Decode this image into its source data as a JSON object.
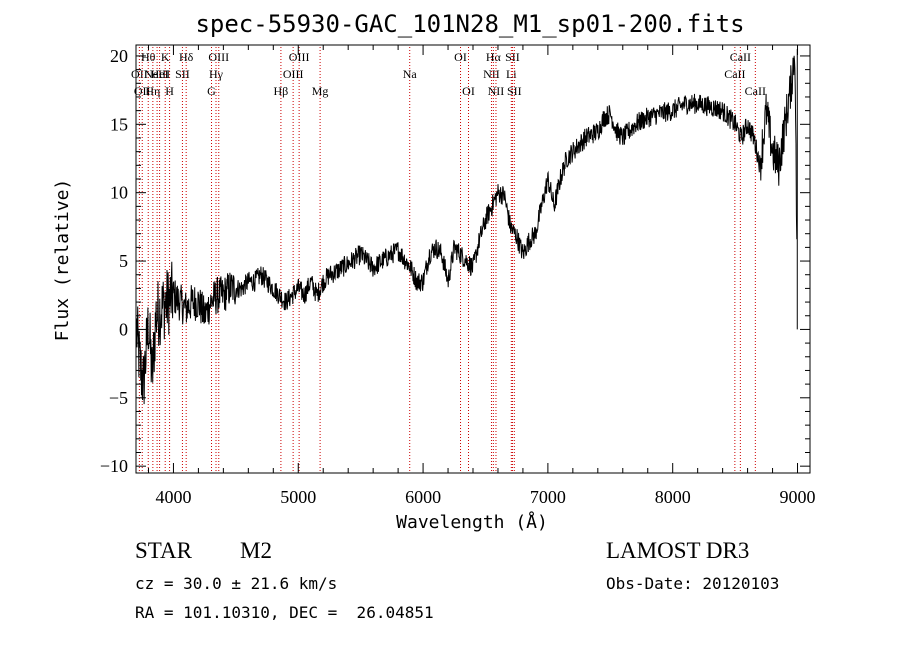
{
  "chart_data": {
    "type": "line",
    "title": "spec-55930-GAC_101N28_M1_sp01-200.fits",
    "xlabel": "Wavelength (Å)",
    "ylabel": "Flux (relative)",
    "xlim": [
      3700,
      9100
    ],
    "ylim": [
      -10.5,
      20.8
    ],
    "xticks": [
      4000,
      5000,
      6000,
      7000,
      8000,
      9000
    ],
    "yticks": [
      -10,
      -5,
      0,
      5,
      10,
      15,
      20
    ],
    "grid": false,
    "series": [
      {
        "name": "flux",
        "color": "#000000",
        "anchors": [
          [
            3700,
            0.5
          ],
          [
            3730,
            -2.5
          ],
          [
            3760,
            -4.0
          ],
          [
            3800,
            0.5
          ],
          [
            3830,
            -3.5
          ],
          [
            3860,
            1.0
          ],
          [
            3900,
            1.5
          ],
          [
            3950,
            2.0
          ],
          [
            4000,
            2.5
          ],
          [
            4050,
            2.0
          ],
          [
            4100,
            1.5
          ],
          [
            4150,
            2.0
          ],
          [
            4200,
            2.0
          ],
          [
            4250,
            1.0
          ],
          [
            4300,
            2.0
          ],
          [
            4350,
            2.5
          ],
          [
            4400,
            2.5
          ],
          [
            4450,
            3.0
          ],
          [
            4500,
            3.0
          ],
          [
            4550,
            3.0
          ],
          [
            4600,
            3.5
          ],
          [
            4650,
            3.5
          ],
          [
            4700,
            4.0
          ],
          [
            4750,
            3.5
          ],
          [
            4800,
            3.0
          ],
          [
            4850,
            2.5
          ],
          [
            4900,
            2.0
          ],
          [
            4950,
            2.5
          ],
          [
            5000,
            3.0
          ],
          [
            5050,
            2.5
          ],
          [
            5100,
            3.5
          ],
          [
            5150,
            2.5
          ],
          [
            5200,
            3.5
          ],
          [
            5250,
            4.0
          ],
          [
            5300,
            4.2
          ],
          [
            5400,
            4.8
          ],
          [
            5500,
            5.5
          ],
          [
            5600,
            4.5
          ],
          [
            5700,
            5.2
          ],
          [
            5800,
            5.8
          ],
          [
            5900,
            4.5
          ],
          [
            5950,
            3.5
          ],
          [
            6000,
            3.5
          ],
          [
            6050,
            5.5
          ],
          [
            6100,
            6.0
          ],
          [
            6150,
            5.5
          ],
          [
            6200,
            3.5
          ],
          [
            6250,
            6.0
          ],
          [
            6300,
            5.5
          ],
          [
            6350,
            5.0
          ],
          [
            6400,
            4.5
          ],
          [
            6450,
            6.5
          ],
          [
            6500,
            8.0
          ],
          [
            6550,
            9.0
          ],
          [
            6600,
            10.0
          ],
          [
            6650,
            9.8
          ],
          [
            6700,
            7.5
          ],
          [
            6750,
            6.8
          ],
          [
            6800,
            5.5
          ],
          [
            6850,
            6.5
          ],
          [
            6900,
            7.0
          ],
          [
            6950,
            9.0
          ],
          [
            7000,
            11.0
          ],
          [
            7050,
            9.0
          ],
          [
            7100,
            11.0
          ],
          [
            7150,
            12.5
          ],
          [
            7200,
            13.0
          ],
          [
            7300,
            14.0
          ],
          [
            7400,
            14.5
          ],
          [
            7450,
            15.5
          ],
          [
            7500,
            15.8
          ],
          [
            7550,
            14.5
          ],
          [
            7600,
            14.0
          ],
          [
            7650,
            14.5
          ],
          [
            7700,
            15.0
          ],
          [
            7800,
            15.5
          ],
          [
            7900,
            15.8
          ],
          [
            8000,
            16.0
          ],
          [
            8100,
            16.5
          ],
          [
            8200,
            16.5
          ],
          [
            8300,
            16.3
          ],
          [
            8400,
            16.0
          ],
          [
            8500,
            15.0
          ],
          [
            8550,
            14.0
          ],
          [
            8600,
            15.0
          ],
          [
            8650,
            14.0
          ],
          [
            8700,
            12.0
          ],
          [
            8750,
            16.0
          ],
          [
            8800,
            13.0
          ],
          [
            8850,
            12.0
          ],
          [
            8900,
            15.0
          ],
          [
            8950,
            18.0
          ],
          [
            8980,
            20.5
          ],
          [
            9000,
            0.0
          ]
        ]
      }
    ],
    "lines": [
      {
        "wl": 3727,
        "labels": [
          "OII"
        ],
        "tier": 2
      },
      {
        "wl": 3750,
        "labels": [
          "OII"
        ],
        "tier": 3
      },
      {
        "wl": 3798,
        "labels": [
          "Hθ"
        ],
        "tier": 1
      },
      {
        "wl": 3835,
        "labels": [
          "Hη"
        ],
        "tier": 3
      },
      {
        "wl": 3869,
        "labels": [
          "NeIII"
        ],
        "tier": 2
      },
      {
        "wl": 3889,
        "labels": [
          "HeI"
        ],
        "tier": 2
      },
      {
        "wl": 3934,
        "labels": [
          "K"
        ],
        "tier": 1
      },
      {
        "wl": 3969,
        "labels": [
          "H"
        ],
        "tier": 3
      },
      {
        "wl": 4072,
        "labels": [
          "SII"
        ],
        "tier": 2
      },
      {
        "wl": 4102,
        "labels": [
          "Hδ"
        ],
        "tier": 1
      },
      {
        "wl": 4305,
        "labels": [
          "G"
        ],
        "tier": 3
      },
      {
        "wl": 4341,
        "labels": [
          "Hγ"
        ],
        "tier": 2
      },
      {
        "wl": 4363,
        "labels": [
          "OIII"
        ],
        "tier": 1
      },
      {
        "wl": 4861,
        "labels": [
          "Hβ"
        ],
        "tier": 3
      },
      {
        "wl": 4959,
        "labels": [
          "OIII"
        ],
        "tier": 2
      },
      {
        "wl": 5007,
        "labels": [
          "OIII"
        ],
        "tier": 1
      },
      {
        "wl": 5175,
        "labels": [
          "Mg"
        ],
        "tier": 3
      },
      {
        "wl": 5893,
        "labels": [
          "Na"
        ],
        "tier": 2
      },
      {
        "wl": 6300,
        "labels": [
          "OI"
        ],
        "tier": 1
      },
      {
        "wl": 6364,
        "labels": [
          "OI"
        ],
        "tier": 3
      },
      {
        "wl": 6548,
        "labels": [
          "NII"
        ],
        "tier": 2
      },
      {
        "wl": 6563,
        "labels": [
          "Hα"
        ],
        "tier": 1
      },
      {
        "wl": 6584,
        "labels": [
          "NII"
        ],
        "tier": 3
      },
      {
        "wl": 6707,
        "labels": [
          "Li"
        ],
        "tier": 2
      },
      {
        "wl": 6716,
        "labels": [
          "SII"
        ],
        "tier": 1
      },
      {
        "wl": 6731,
        "labels": [
          "SII"
        ],
        "tier": 3
      },
      {
        "wl": 8498,
        "labels": [
          "CaII"
        ],
        "tier": 2
      },
      {
        "wl": 8542,
        "labels": [
          "CaII"
        ],
        "tier": 1
      },
      {
        "wl": 8662,
        "labels": [
          "CaII"
        ],
        "tier": 3
      }
    ]
  },
  "footer": {
    "class_label": "STAR",
    "subclass": "M2",
    "survey": "LAMOST DR3",
    "cz": "cz = 30.0 ± 21.6 km/s",
    "obs_date": "Obs-Date: 20120103",
    "coords": "RA = 101.10310, DEC =  26.04851"
  }
}
